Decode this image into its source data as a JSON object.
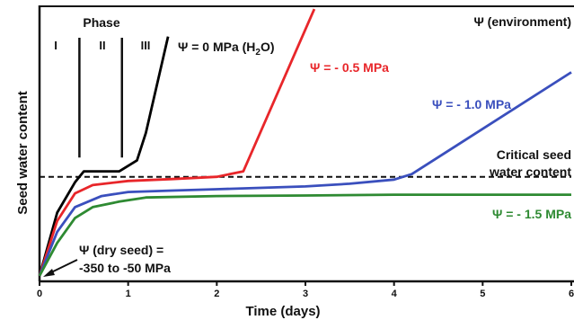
{
  "chart_data": {
    "type": "line",
    "title": "",
    "xlabel": "Time (days)",
    "ylabel": "Seed water content",
    "xlim": [
      0,
      6
    ],
    "ylim": [
      0,
      1
    ],
    "x_ticks": [
      "0",
      "1",
      "2",
      "3",
      "4",
      "5",
      "6"
    ],
    "legend": "none (curves labeled directly)",
    "grid": false,
    "series": [
      {
        "name": "Ψ = 0 MPa (H2O)",
        "color": "#000000",
        "points": [
          [
            0,
            0.02
          ],
          [
            0.2,
            0.25
          ],
          [
            0.4,
            0.36
          ],
          [
            0.5,
            0.4
          ],
          [
            0.6,
            0.4
          ],
          [
            0.9,
            0.4
          ],
          [
            1.1,
            0.44
          ],
          [
            1.2,
            0.54
          ],
          [
            1.45,
            0.89
          ]
        ]
      },
      {
        "name": "Ψ = - 0.5 MPa",
        "color": "#e8262a",
        "points": [
          [
            0,
            0.02
          ],
          [
            0.2,
            0.22
          ],
          [
            0.4,
            0.32
          ],
          [
            0.6,
            0.35
          ],
          [
            1.0,
            0.365
          ],
          [
            1.5,
            0.372
          ],
          [
            2.0,
            0.38
          ],
          [
            2.3,
            0.4
          ],
          [
            3.1,
            0.99
          ]
        ]
      },
      {
        "name": "Ψ = - 1.0 MPa",
        "color": "#3a4fbd",
        "points": [
          [
            0,
            0.02
          ],
          [
            0.2,
            0.18
          ],
          [
            0.4,
            0.27
          ],
          [
            0.7,
            0.31
          ],
          [
            1.0,
            0.325
          ],
          [
            1.5,
            0.33
          ],
          [
            2.0,
            0.335
          ],
          [
            3.0,
            0.345
          ],
          [
            3.5,
            0.355
          ],
          [
            4.0,
            0.37
          ],
          [
            4.2,
            0.39
          ],
          [
            6.0,
            0.76
          ]
        ]
      },
      {
        "name": "Ψ = - 1.5 MPa",
        "color": "#2e8a32",
        "points": [
          [
            0,
            0.02
          ],
          [
            0.2,
            0.14
          ],
          [
            0.4,
            0.23
          ],
          [
            0.6,
            0.27
          ],
          [
            0.9,
            0.29
          ],
          [
            1.2,
            0.305
          ],
          [
            2.0,
            0.31
          ],
          [
            3.0,
            0.312
          ],
          [
            4.0,
            0.315
          ],
          [
            6.0,
            0.315
          ]
        ]
      }
    ],
    "threshold": {
      "label_line1": "Critical seed",
      "label_line2": "water content",
      "y": 0.38
    },
    "phase_boundaries_x": [
      0.45,
      0.93
    ],
    "phases": {
      "label": "Phase",
      "names": [
        "I",
        "II",
        "III"
      ]
    },
    "annotations": {
      "environment": "Ψ (environment)",
      "dry_seed_line1": "Ψ (dry seed) =",
      "dry_seed_line2": "-350 to -50 MPa"
    },
    "labels": {
      "psi0_pre": "Ψ = 0 MPa (H",
      "psi0_sub": "2",
      "psi0_post": "O)",
      "psi05": "Ψ = - 0.5 MPa",
      "psi10": "Ψ = - 1.0 MPa",
      "psi15": "Ψ = - 1.5 MPa"
    }
  }
}
